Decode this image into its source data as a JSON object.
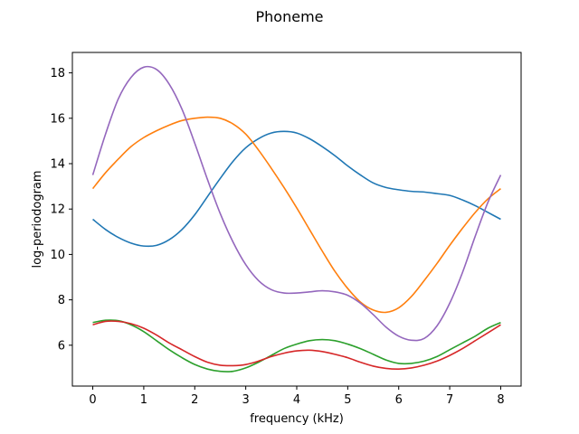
{
  "chart_data": {
    "type": "line",
    "title": "Phoneme",
    "xlabel": "frequency (kHz)",
    "ylabel": "log-periodogram",
    "xlim": [
      -0.4,
      8.4
    ],
    "ylim": [
      4.2,
      18.9
    ],
    "xticks": [
      0,
      1,
      2,
      3,
      4,
      5,
      6,
      7,
      8
    ],
    "yticks": [
      6,
      8,
      10,
      12,
      14,
      16,
      18
    ],
    "grid": false,
    "legend": "none",
    "series": [
      {
        "color": "#1f77b4",
        "x": [
          0,
          0.25,
          0.5,
          0.75,
          1,
          1.25,
          1.5,
          1.75,
          2,
          2.25,
          2.5,
          2.75,
          3,
          3.25,
          3.5,
          3.75,
          4,
          4.25,
          4.5,
          4.75,
          5,
          5.25,
          5.5,
          5.75,
          6,
          6.25,
          6.5,
          6.75,
          7,
          7.25,
          7.5,
          7.75,
          8
        ],
        "values": [
          11.55,
          11.1,
          10.75,
          10.5,
          10.37,
          10.4,
          10.65,
          11.1,
          11.75,
          12.55,
          13.35,
          14.1,
          14.7,
          15.1,
          15.35,
          15.42,
          15.35,
          15.1,
          14.75,
          14.35,
          13.9,
          13.5,
          13.15,
          12.95,
          12.85,
          12.78,
          12.75,
          12.68,
          12.6,
          12.4,
          12.15,
          11.85,
          11.55
        ]
      },
      {
        "color": "#ff7f0e",
        "x": [
          0,
          0.25,
          0.5,
          0.75,
          1,
          1.25,
          1.5,
          1.75,
          2,
          2.25,
          2.5,
          2.75,
          3,
          3.25,
          3.5,
          3.75,
          4,
          4.25,
          4.5,
          4.75,
          5,
          5.25,
          5.5,
          5.75,
          6,
          6.25,
          6.5,
          6.75,
          7,
          7.25,
          7.5,
          7.75,
          8
        ],
        "values": [
          12.9,
          13.6,
          14.2,
          14.75,
          15.15,
          15.45,
          15.7,
          15.9,
          16.0,
          16.05,
          16.0,
          15.75,
          15.3,
          14.6,
          13.8,
          12.95,
          12.05,
          11.1,
          10.15,
          9.25,
          8.5,
          7.9,
          7.55,
          7.45,
          7.65,
          8.15,
          8.85,
          9.6,
          10.4,
          11.15,
          11.85,
          12.45,
          12.9
        ]
      },
      {
        "color": "#2ca02c",
        "x": [
          0,
          0.25,
          0.5,
          0.75,
          1,
          1.25,
          1.5,
          1.75,
          2,
          2.25,
          2.5,
          2.75,
          3,
          3.25,
          3.5,
          3.75,
          4,
          4.25,
          4.5,
          4.75,
          5,
          5.25,
          5.5,
          5.75,
          6,
          6.25,
          6.5,
          6.75,
          7,
          7.25,
          7.5,
          7.75,
          8
        ],
        "values": [
          7.0,
          7.1,
          7.08,
          6.9,
          6.6,
          6.2,
          5.8,
          5.45,
          5.15,
          4.95,
          4.85,
          4.85,
          5.0,
          5.25,
          5.55,
          5.85,
          6.05,
          6.2,
          6.25,
          6.2,
          6.05,
          5.85,
          5.6,
          5.35,
          5.2,
          5.2,
          5.3,
          5.5,
          5.8,
          6.1,
          6.4,
          6.75,
          7.0
        ]
      },
      {
        "color": "#d62728",
        "x": [
          0,
          0.25,
          0.5,
          0.75,
          1,
          1.25,
          1.5,
          1.75,
          2,
          2.25,
          2.5,
          2.75,
          3,
          3.25,
          3.5,
          3.75,
          4,
          4.25,
          4.5,
          4.75,
          5,
          5.25,
          5.5,
          5.75,
          6,
          6.25,
          6.5,
          6.75,
          7,
          7.25,
          7.5,
          7.75,
          8
        ],
        "values": [
          6.9,
          7.05,
          7.05,
          6.95,
          6.75,
          6.45,
          6.1,
          5.8,
          5.5,
          5.25,
          5.12,
          5.1,
          5.15,
          5.3,
          5.5,
          5.65,
          5.75,
          5.78,
          5.72,
          5.6,
          5.45,
          5.25,
          5.08,
          4.98,
          4.95,
          5.0,
          5.12,
          5.3,
          5.55,
          5.85,
          6.2,
          6.55,
          6.9
        ]
      },
      {
        "color": "#9467bd",
        "x": [
          0,
          0.25,
          0.5,
          0.75,
          1,
          1.25,
          1.5,
          1.75,
          2,
          2.25,
          2.5,
          2.75,
          3,
          3.25,
          3.5,
          3.75,
          4,
          4.25,
          4.5,
          4.75,
          5,
          5.25,
          5.5,
          5.75,
          6,
          6.25,
          6.5,
          6.75,
          7,
          7.25,
          7.5,
          7.75,
          8
        ],
        "values": [
          13.5,
          15.3,
          16.85,
          17.8,
          18.25,
          18.15,
          17.5,
          16.4,
          14.9,
          13.3,
          11.8,
          10.55,
          9.55,
          8.85,
          8.45,
          8.3,
          8.3,
          8.35,
          8.4,
          8.35,
          8.2,
          7.85,
          7.35,
          6.8,
          6.4,
          6.22,
          6.3,
          6.85,
          7.85,
          9.2,
          10.8,
          12.3,
          13.5
        ]
      }
    ]
  }
}
